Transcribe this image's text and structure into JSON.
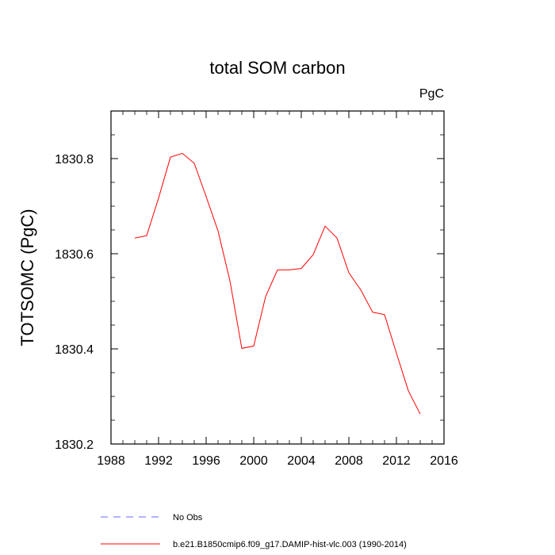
{
  "chart_data": {
    "type": "line",
    "title": "total SOM carbon",
    "units": "PgC",
    "xlabel": "",
    "ylabel": "TOTSOMC  (PgC)",
    "xlim": [
      1988,
      2016
    ],
    "ylim": [
      1830.2,
      1830.9
    ],
    "x_ticks": [
      1988,
      1992,
      1996,
      2000,
      2004,
      2008,
      2012,
      2016
    ],
    "y_ticks": [
      1830.2,
      1830.4,
      1830.6,
      1830.8
    ],
    "y_tick_labels": [
      "1830.2",
      "1830.4",
      "1830.6",
      "1830.8"
    ],
    "series": [
      {
        "name": "No Obs",
        "color": "#0000ff",
        "style": "dashed",
        "x": [],
        "values": []
      },
      {
        "name": "b.e21.B1850cmip6.f09_g17.DAMIP-hist-vlc.003 (1990-2014)",
        "color": "#ff0000",
        "style": "solid",
        "x": [
          1990,
          1991,
          1992,
          1993,
          1994,
          1995,
          1996,
          1997,
          1998,
          1999,
          2000,
          2001,
          2002,
          2003,
          2004,
          2005,
          2006,
          2007,
          2008,
          2009,
          2010,
          2011,
          2012,
          2013,
          2014
        ],
        "values": [
          1830.633,
          1830.638,
          1830.717,
          1830.803,
          1830.811,
          1830.79,
          1830.72,
          1830.648,
          1830.543,
          1830.401,
          1830.406,
          1830.51,
          1830.566,
          1830.566,
          1830.569,
          1830.598,
          1830.658,
          1830.633,
          1830.56,
          1830.524,
          1830.477,
          1830.472,
          1830.391,
          1830.312,
          1830.263
        ]
      }
    ],
    "legend_position": "bottom"
  }
}
